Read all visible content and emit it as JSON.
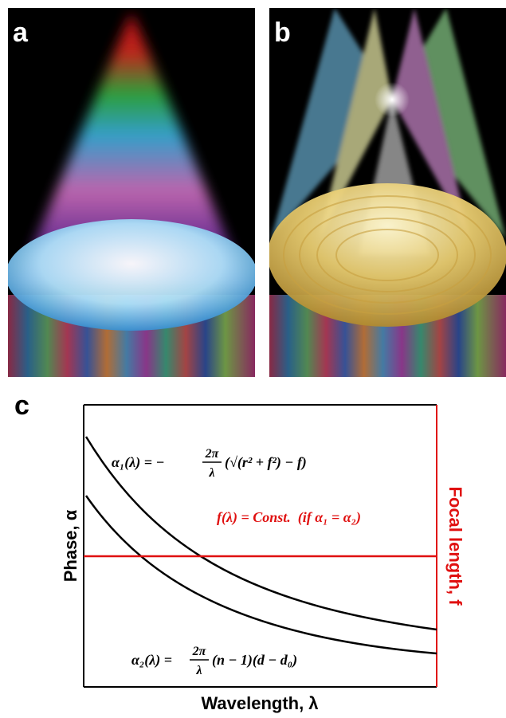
{
  "panels": {
    "a": {
      "label": "a"
    },
    "b": {
      "label": "b"
    },
    "c": {
      "label": "c",
      "y_axis_label": "Phase, α",
      "y2_axis_label": "Focal length, f",
      "x_axis_label": "Wavelength, λ",
      "equation_1": {
        "left": "α₁(λ) = −",
        "numerator": "2π",
        "denominator": "λ",
        "right": "(√(r² + f²) − f)"
      },
      "equation_2": {
        "left": "α₂(λ) =",
        "numerator": "2π",
        "denominator": "λ",
        "right": "(n − 1)(d − d₀)"
      },
      "focal_note": "f(λ) = Const.  (if α₁ = α₂)"
    }
  }
}
